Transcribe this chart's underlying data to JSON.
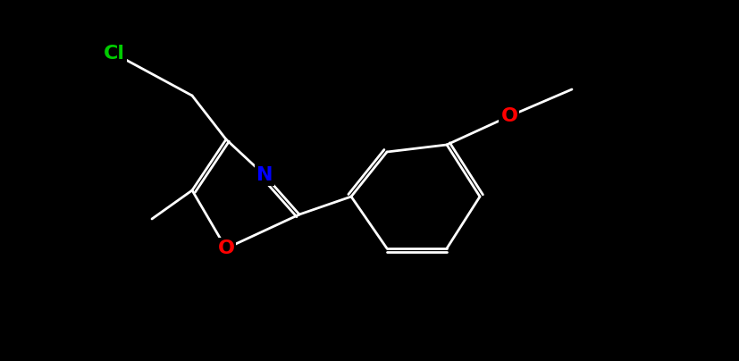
{
  "background_color": "#000000",
  "bond_color": "#ffffff",
  "bond_width": 2.0,
  "figsize": [
    8.28,
    4.04
  ],
  "dpi": 100,
  "atoms": {
    "Cl": {
      "color": "#00cc00"
    },
    "N": {
      "color": "#0000ff"
    },
    "O": {
      "color": "#ff0000"
    },
    "C": {
      "color": "#ffffff"
    }
  },
  "font_size": 14
}
